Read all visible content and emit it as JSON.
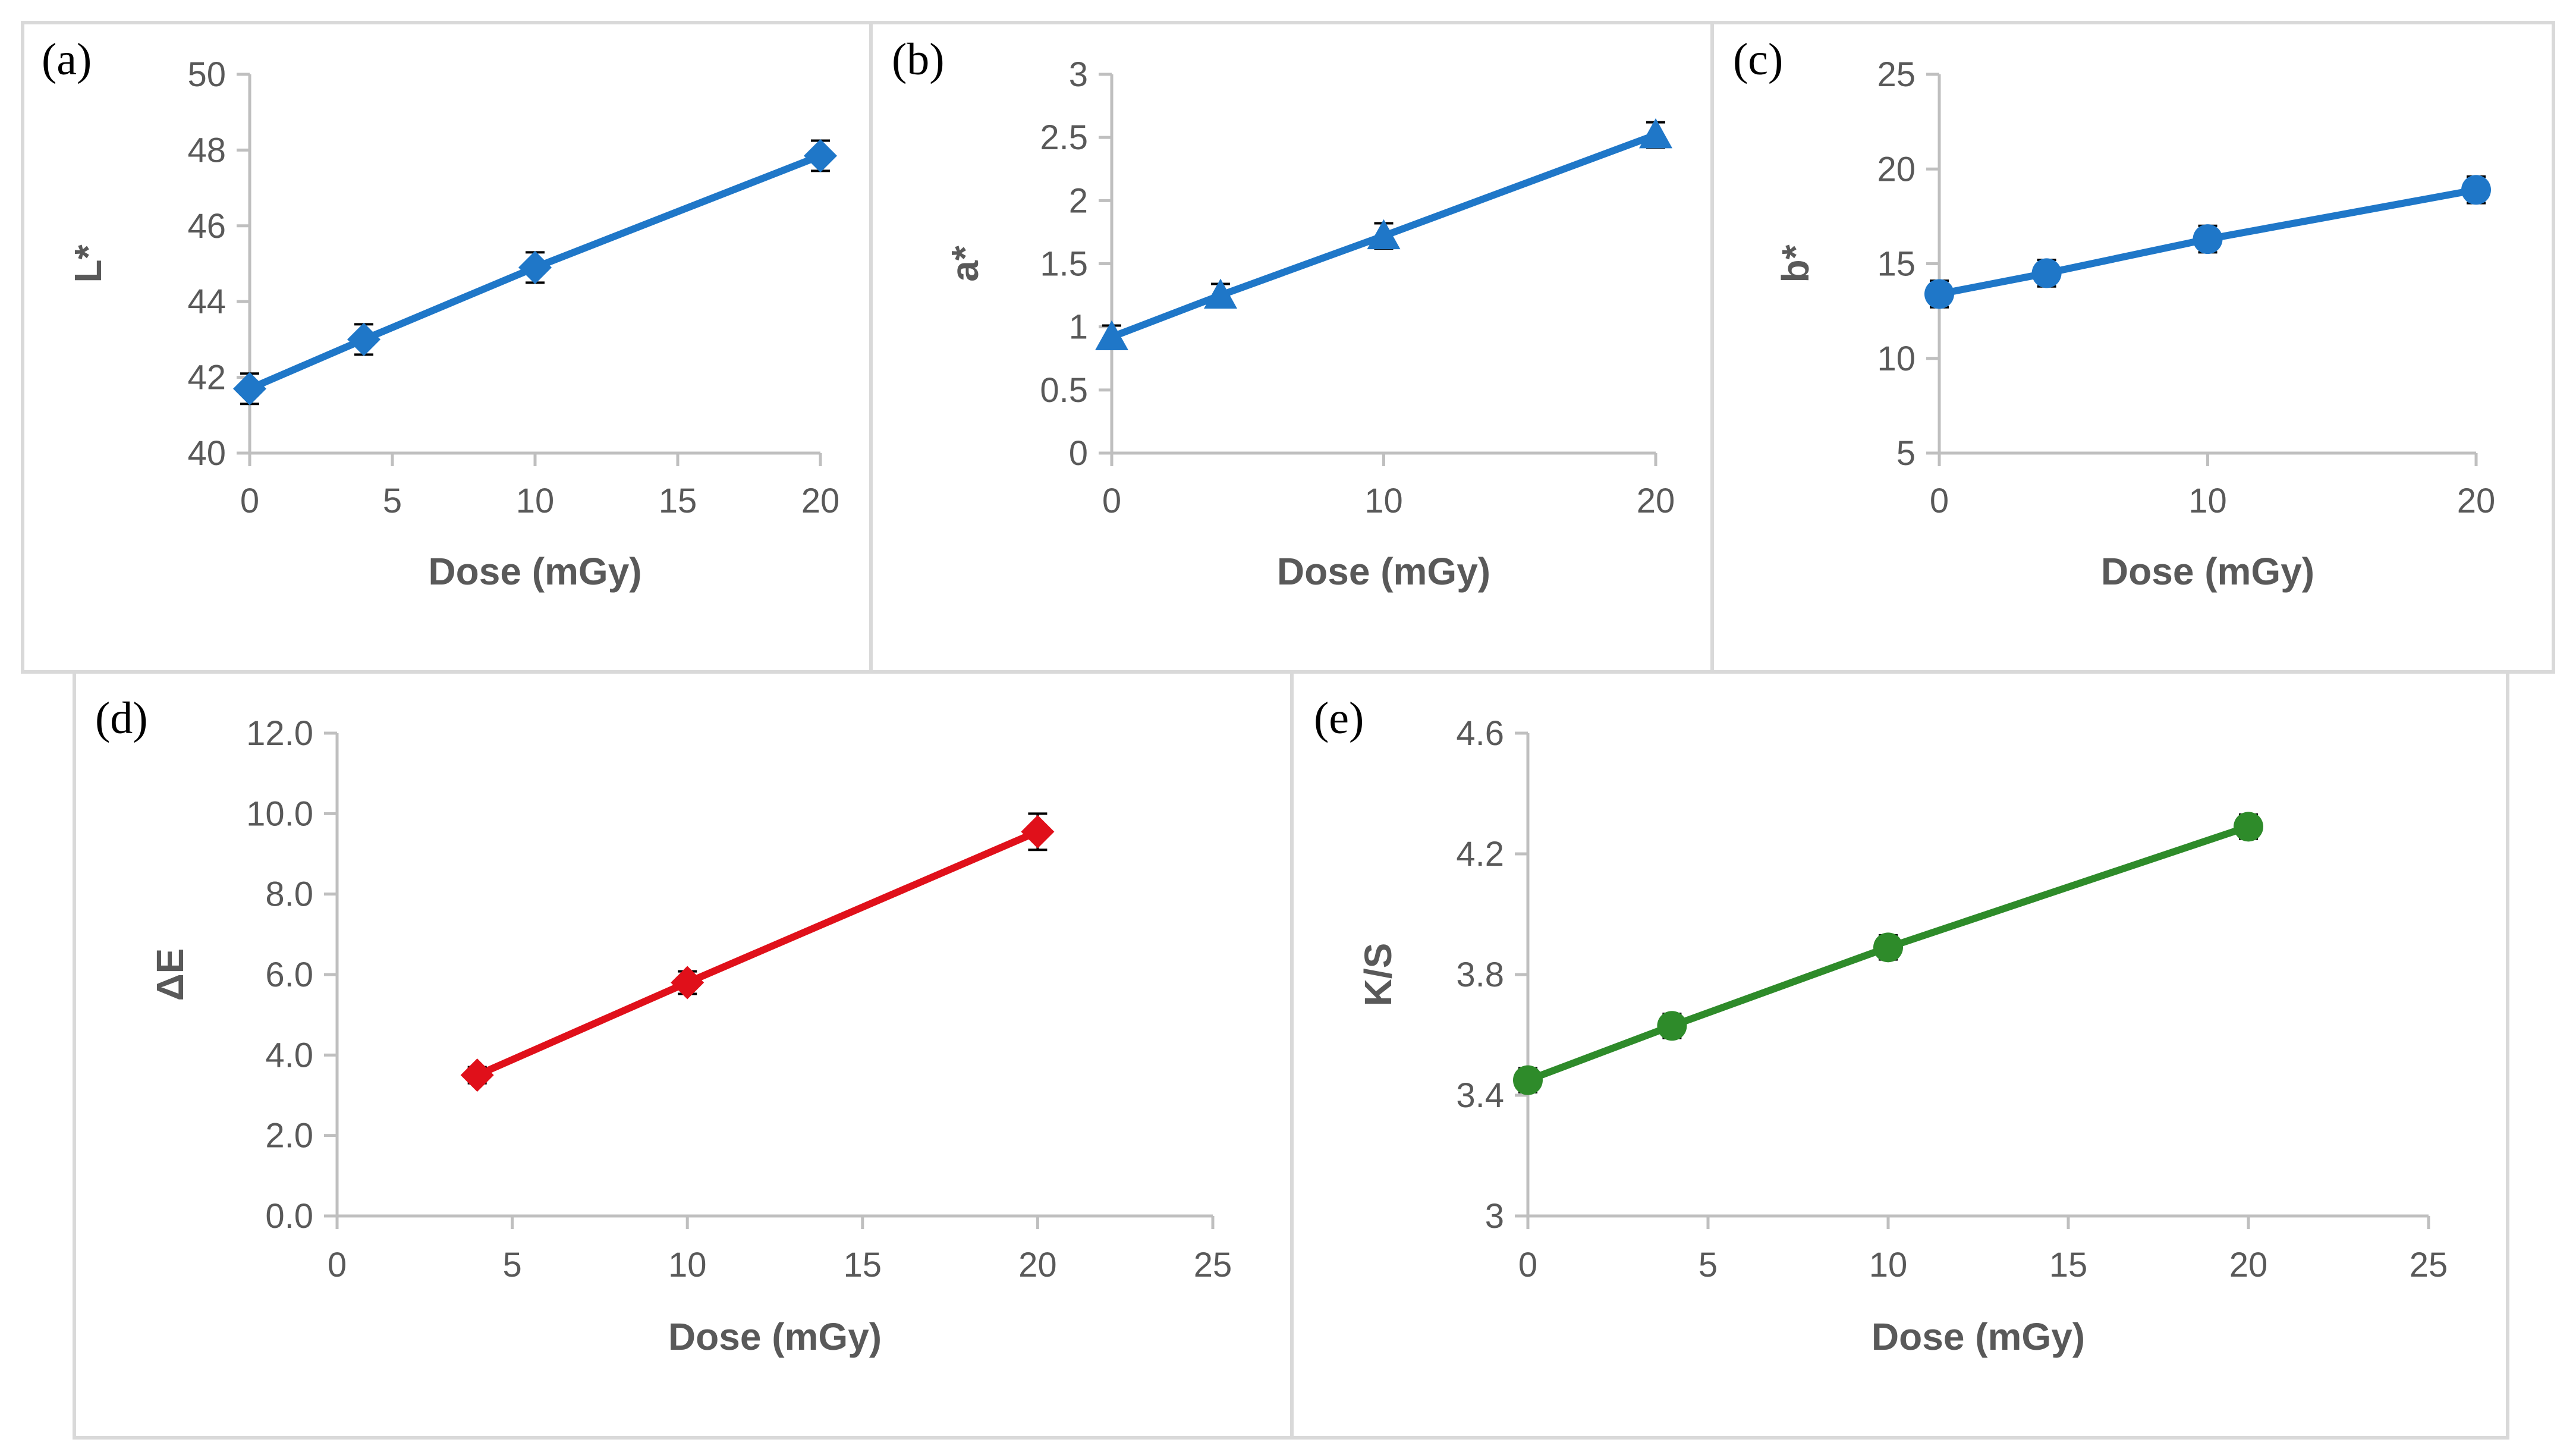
{
  "chart_data": [
    {
      "id": "a",
      "type": "line",
      "panel_label": "(a)",
      "title": "",
      "xlabel": "Dose (mGy)",
      "ylabel": "L*",
      "xlim": [
        0,
        20
      ],
      "ylim": [
        40,
        50
      ],
      "x_ticks": [
        0,
        5,
        10,
        15,
        20
      ],
      "y_ticks": [
        40,
        42,
        44,
        46,
        48,
        50
      ],
      "y_decimals": 0,
      "marker": "diamond",
      "color": "#1f77c8",
      "grid": false,
      "series": [
        {
          "name": "L*",
          "x": [
            0,
            4,
            10,
            20
          ],
          "y": [
            41.7,
            43.0,
            44.9,
            47.85
          ],
          "err": [
            0.4,
            0.4,
            0.4,
            0.4
          ]
        }
      ]
    },
    {
      "id": "b",
      "type": "line",
      "panel_label": "(b)",
      "title": "",
      "xlabel": "Dose (mGy)",
      "ylabel": "a*",
      "xlim": [
        0,
        20
      ],
      "ylim": [
        0,
        3
      ],
      "x_ticks": [
        0,
        10,
        20
      ],
      "y_ticks": [
        0,
        0.5,
        1,
        1.5,
        2,
        2.5,
        3
      ],
      "y_decimals": -1,
      "marker": "triangle",
      "color": "#1f77c8",
      "grid": false,
      "series": [
        {
          "name": "a*",
          "x": [
            0,
            4,
            10,
            20
          ],
          "y": [
            0.92,
            1.25,
            1.72,
            2.52
          ],
          "err": [
            0.09,
            0.09,
            0.1,
            0.1
          ]
        }
      ]
    },
    {
      "id": "c",
      "type": "line",
      "panel_label": "(c)",
      "title": "",
      "xlabel": "Dose (mGy)",
      "ylabel": "b*",
      "xlim": [
        0,
        20
      ],
      "ylim": [
        5,
        25
      ],
      "x_ticks": [
        0,
        10,
        20
      ],
      "y_ticks": [
        5,
        10,
        15,
        20,
        25
      ],
      "y_decimals": 0,
      "marker": "circle",
      "color": "#1f77c8",
      "grid": false,
      "series": [
        {
          "name": "b*",
          "x": [
            0,
            4,
            10,
            20
          ],
          "y": [
            13.4,
            14.5,
            16.3,
            18.9
          ],
          "err": [
            0.7,
            0.7,
            0.7,
            0.7
          ]
        }
      ]
    },
    {
      "id": "d",
      "type": "line",
      "panel_label": "(d)",
      "title": "",
      "xlabel": "Dose (mGy)",
      "ylabel": "ΔE",
      "xlim": [
        0,
        25
      ],
      "ylim": [
        0,
        12
      ],
      "x_ticks": [
        0,
        5,
        10,
        15,
        20,
        25
      ],
      "y_ticks": [
        0,
        2,
        4,
        6,
        8,
        10,
        12
      ],
      "y_decimals": 1,
      "marker": "diamond",
      "color": "#e0101a",
      "grid": false,
      "series": [
        {
          "name": "ΔE",
          "x": [
            4,
            10,
            20
          ],
          "y": [
            3.5,
            5.8,
            9.55
          ],
          "err": [
            0.2,
            0.28,
            0.45
          ]
        }
      ]
    },
    {
      "id": "e",
      "type": "line",
      "panel_label": "(e)",
      "title": "",
      "xlabel": "Dose (mGy)",
      "ylabel": "K/S",
      "xlim": [
        0,
        25
      ],
      "ylim": [
        3,
        4.6
      ],
      "x_ticks": [
        0,
        5,
        10,
        15,
        20,
        25
      ],
      "y_ticks": [
        3,
        3.4,
        3.8,
        4.2,
        4.6
      ],
      "y_decimals": -1,
      "marker": "circle",
      "color": "#2e8b2a",
      "grid": false,
      "series": [
        {
          "name": "K/S",
          "x": [
            0,
            4,
            10,
            20
          ],
          "y": [
            3.45,
            3.63,
            3.89,
            4.29
          ],
          "err": [
            0.04,
            0.04,
            0.04,
            0.04
          ]
        }
      ]
    }
  ]
}
